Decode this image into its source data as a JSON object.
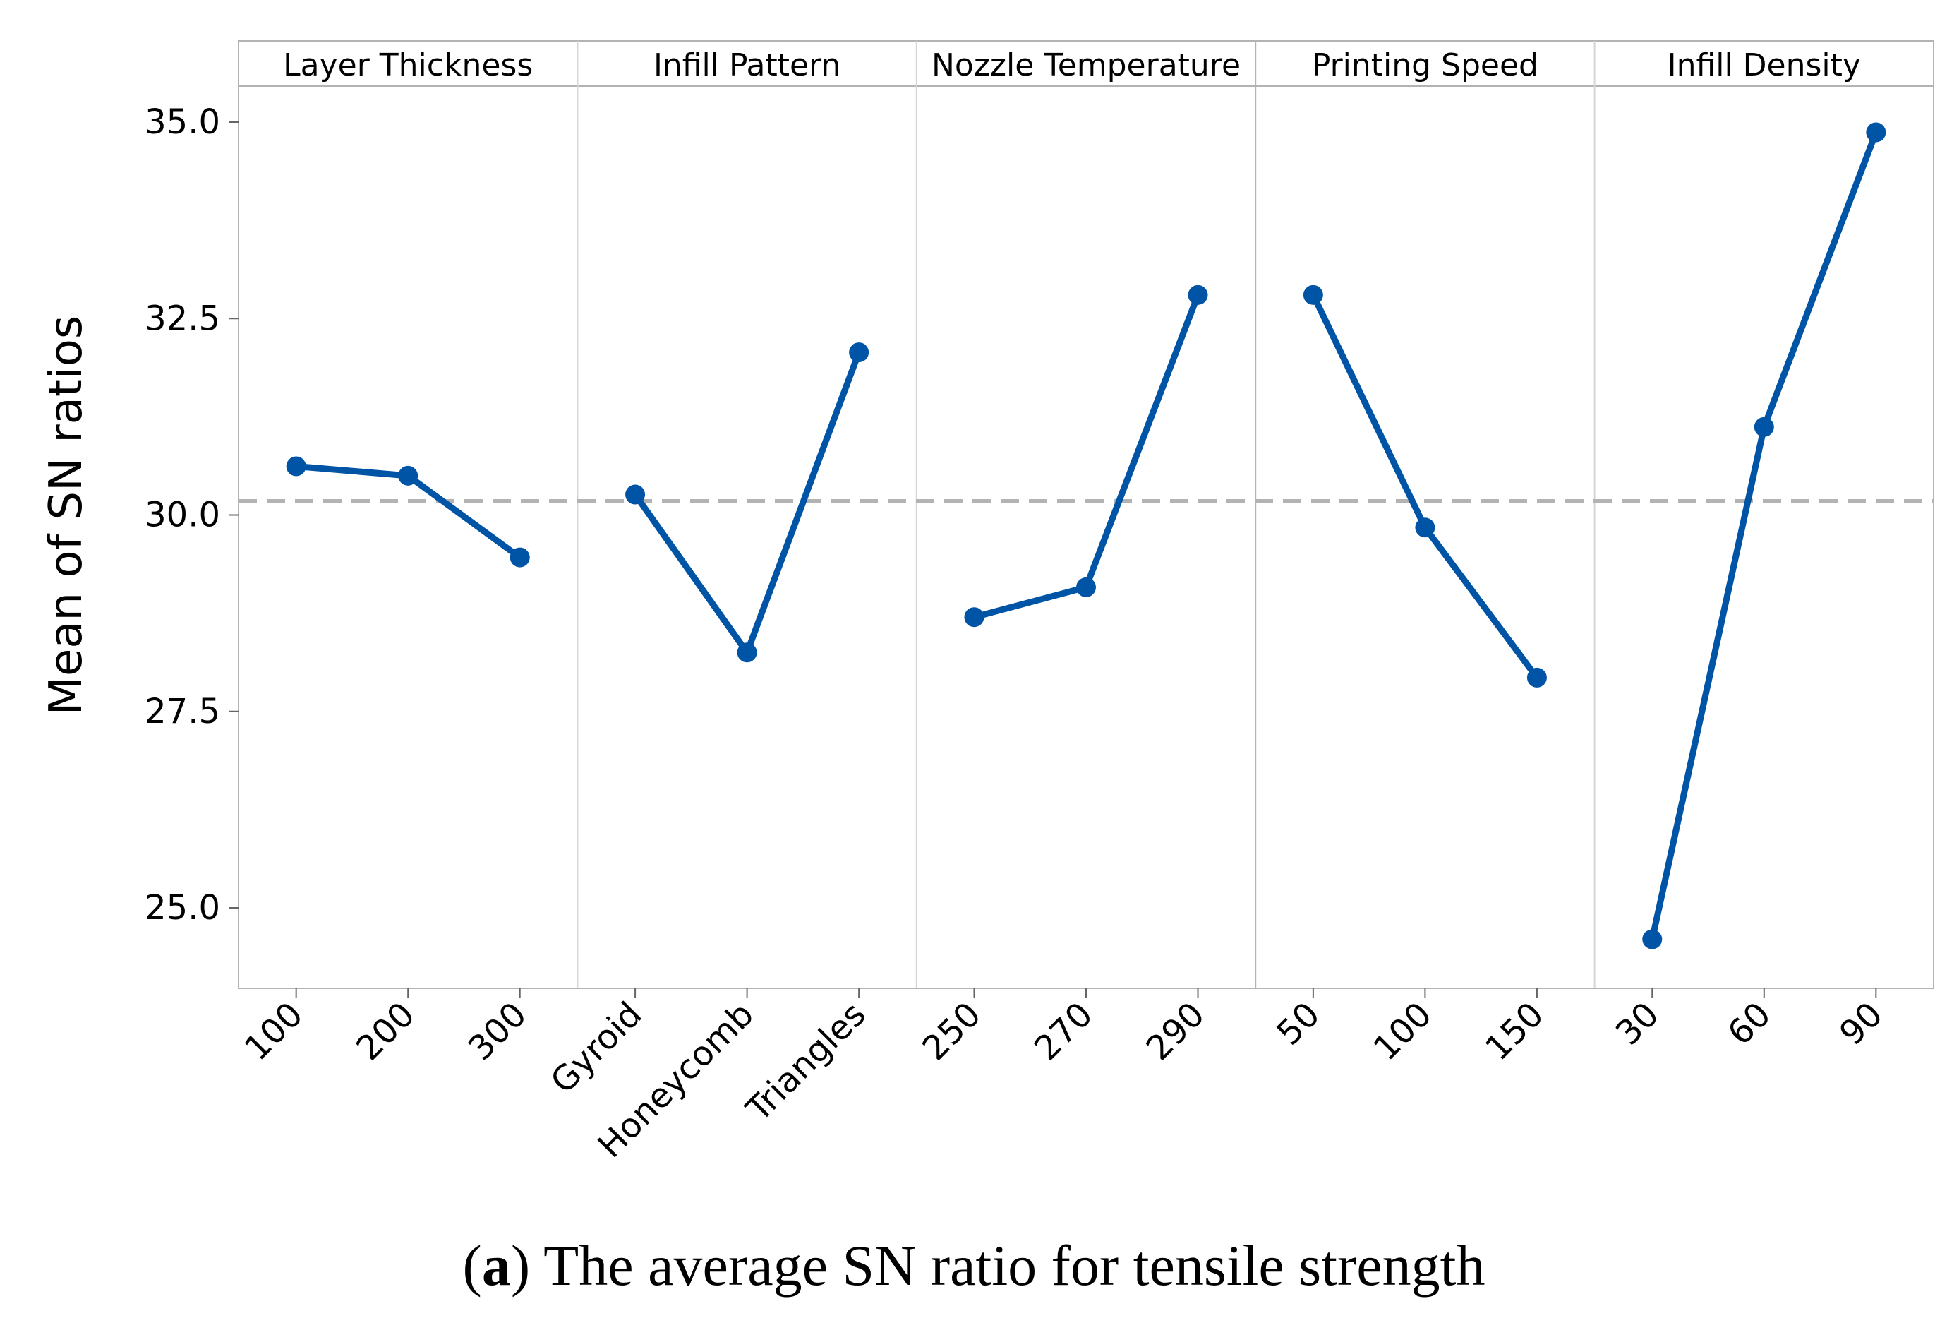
{
  "chart_data": {
    "type": "line",
    "title": "",
    "ylabel": "Mean of SN ratios",
    "ylim": [
      24,
      36
    ],
    "yticks": [
      "25.0",
      "27.5",
      "30.0",
      "32.5",
      "35.0"
    ],
    "reference_mean": 30.18,
    "colors": {
      "series": "#0054a6",
      "reference": "#b3b3b3",
      "frame": "#b3b3b3",
      "divider": "#d6d6d6"
    },
    "panels": [
      {
        "name": "Layer Thickness",
        "categories": [
          "100",
          "200",
          "300"
        ],
        "values": [
          30.62,
          30.5,
          29.46
        ]
      },
      {
        "name": "Infill Pattern",
        "categories": [
          "Gyroid",
          "Honeycomb",
          "Triangles"
        ],
        "values": [
          30.26,
          28.25,
          32.07
        ]
      },
      {
        "name": "Nozzle Temperature",
        "categories": [
          "250",
          "270",
          "290"
        ],
        "values": [
          28.7,
          29.08,
          32.8
        ]
      },
      {
        "name": "Printing Speed",
        "categories": [
          "50",
          "100",
          "150"
        ],
        "values": [
          32.8,
          29.84,
          27.93
        ]
      },
      {
        "name": "Infill Density",
        "categories": [
          "30",
          "60",
          "90"
        ],
        "values": [
          24.6,
          31.12,
          34.87
        ]
      }
    ]
  },
  "caption": {
    "label": "a",
    "text": "The average SN ratio for tensile strength"
  }
}
